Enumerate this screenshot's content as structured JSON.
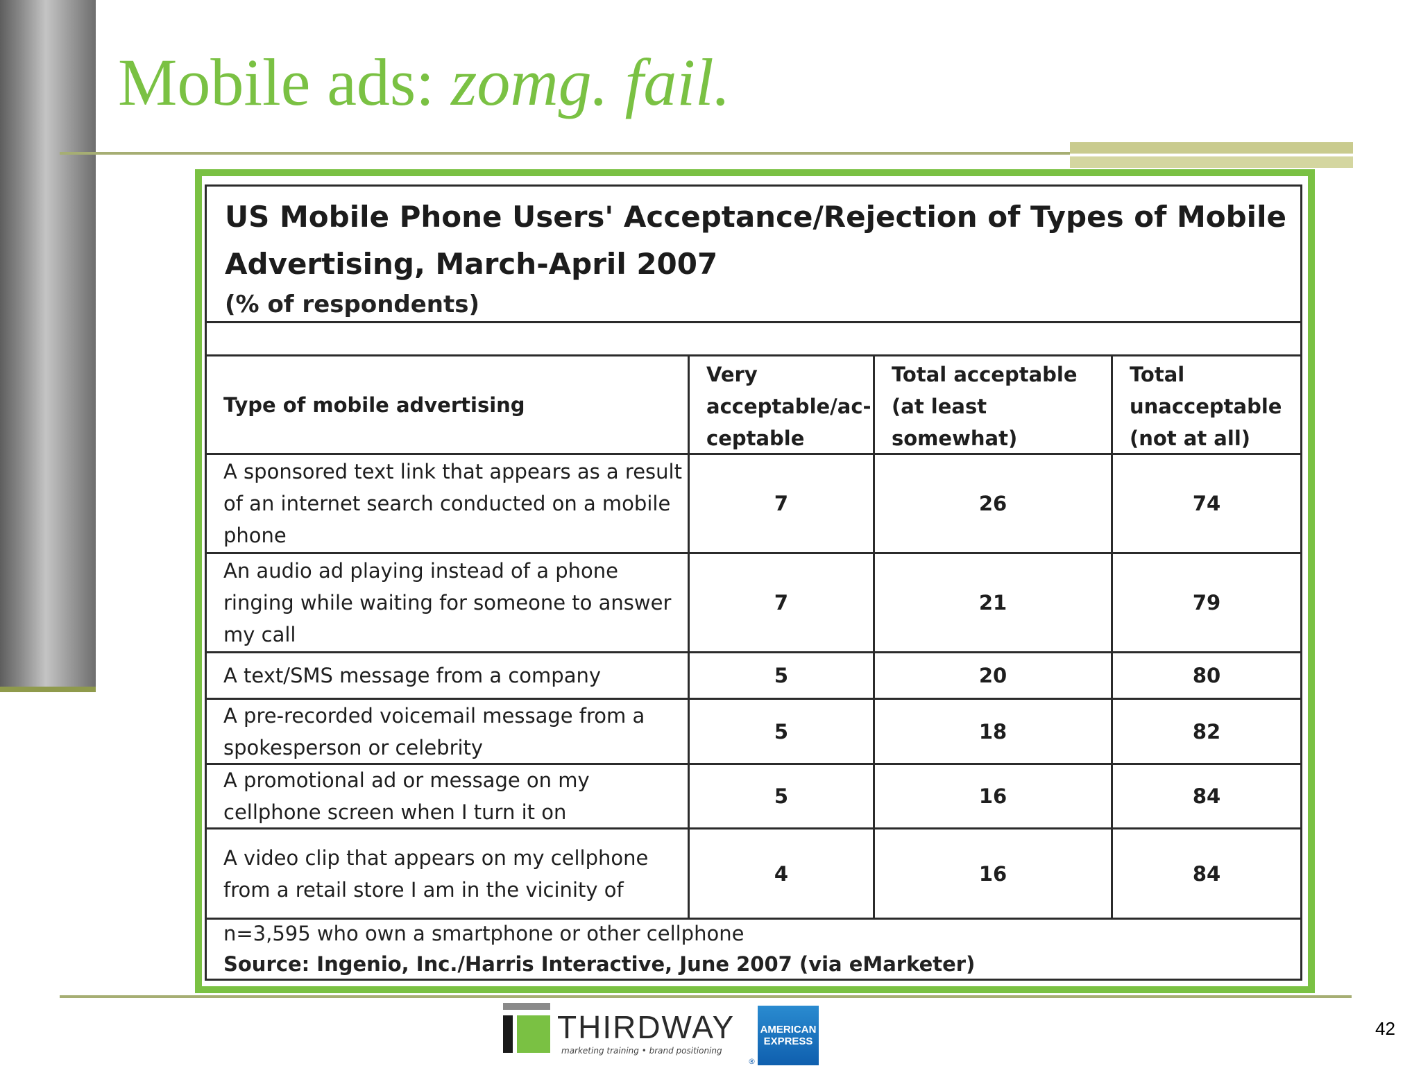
{
  "slide": {
    "title_plain": "Mobile ads: ",
    "title_italic": "zomg. fail.",
    "page_number": "42"
  },
  "table": {
    "title": "US Mobile Phone Users' Acceptance/Rejection of Types of Mobile Advertising, March-April 2007",
    "subtitle": "(% of respondents)",
    "headers": [
      "Type of mobile advertising",
      "Very acceptable/ac-ceptable",
      "Total acceptable (at least somewhat)",
      "Total unacceptable (not at all)"
    ],
    "rows": [
      {
        "type": "A sponsored text link that appears as a result of an internet search conducted on a mobile phone",
        "very": "7",
        "total_acceptable": "26",
        "total_unacceptable": "74"
      },
      {
        "type": "An audio ad playing instead of a phone ringing while waiting for someone to answer my call",
        "very": "7",
        "total_acceptable": "21",
        "total_unacceptable": "79"
      },
      {
        "type": "A text/SMS message from a company",
        "very": "5",
        "total_acceptable": "20",
        "total_unacceptable": "80"
      },
      {
        "type": "A pre-recorded voicemail message from a spokesperson or celebrity",
        "very": "5",
        "total_acceptable": "18",
        "total_unacceptable": "82"
      },
      {
        "type": "A promotional ad or message on my cellphone screen when I turn it on",
        "very": "5",
        "total_acceptable": "16",
        "total_unacceptable": "84"
      },
      {
        "type": "A video clip that appears on my cellphone from a retail store I am in the vicinity of",
        "very": "4",
        "total_acceptable": "16",
        "total_unacceptable": "84"
      }
    ],
    "note": "n=3,595 who own a smartphone or other cellphone",
    "source": "Source: Ingenio, Inc./Harris Interactive, June 2007 (via eMarketer)"
  },
  "logos": {
    "thirdway_word": "THIRDWAY",
    "thirdway_tagline": "marketing training • brand positioning",
    "amex_line1": "AMERICAN",
    "amex_line2": "EXPRESS",
    "amex_reg": "®"
  }
}
